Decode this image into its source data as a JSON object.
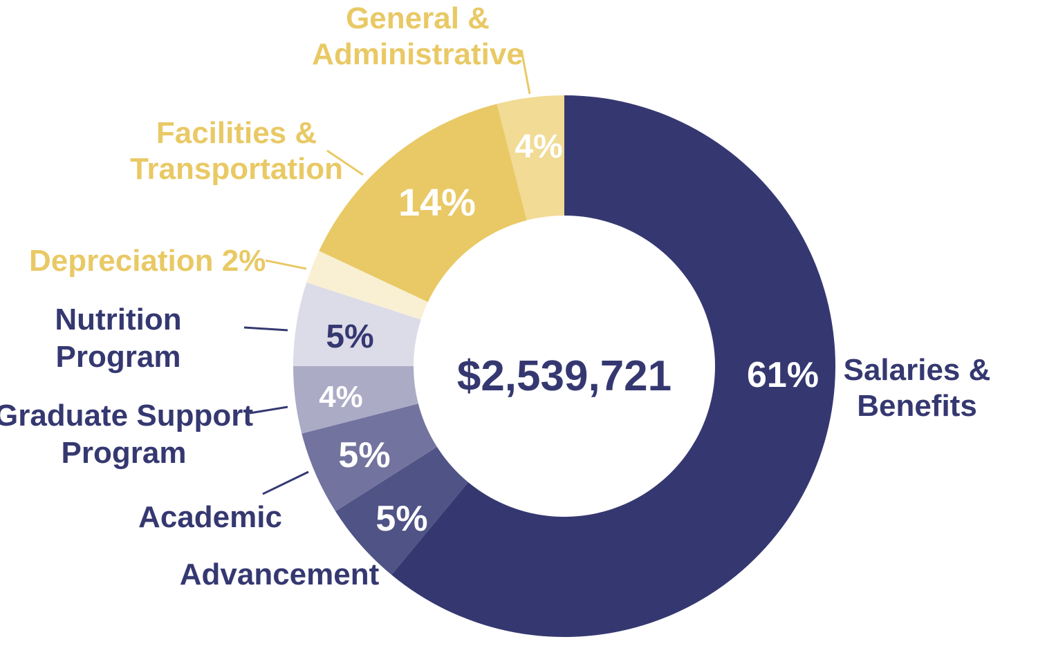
{
  "chart_data": {
    "type": "donut",
    "total_label": "$2,539,721",
    "colors": {
      "total_text": "#353870",
      "navy_label": "#353870",
      "gold_label": "#E9C965",
      "leader_navy": "#353870",
      "leader_gold": "#E9C965"
    },
    "slices": [
      {
        "name": "Salaries & Benefits",
        "label_lines": [
          "Salaries &",
          "Benefits"
        ],
        "value": 61,
        "pct_label": "61%",
        "color": "#353870",
        "pct_color": "#ffffff",
        "label_color_key": "navy_label"
      },
      {
        "name": "Advancement",
        "label_lines": [
          "Advancement"
        ],
        "value": 5,
        "pct_label": "5%",
        "color": "#4F5385",
        "pct_color": "#ffffff",
        "label_color_key": "navy_label"
      },
      {
        "name": "Academic",
        "label_lines": [
          "Academic"
        ],
        "value": 5,
        "pct_label": "5%",
        "color": "#73739F",
        "pct_color": "#ffffff",
        "label_color_key": "navy_label"
      },
      {
        "name": "Graduate Support Program",
        "label_lines": [
          "Graduate Support",
          "Program"
        ],
        "value": 4,
        "pct_label": "4%",
        "color": "#ACABC6",
        "pct_color": "#ffffff",
        "label_color_key": "navy_label"
      },
      {
        "name": "Nutrition Program",
        "label_lines": [
          "Nutrition",
          "Program"
        ],
        "value": 5,
        "pct_label": "5%",
        "color": "#DCDBE8",
        "pct_color": "#353870",
        "label_color_key": "navy_label"
      },
      {
        "name": "Depreciation",
        "label_lines": [
          "Depreciation  2%"
        ],
        "value": 2,
        "pct_label": "",
        "color": "#F9F0D3",
        "pct_color": "#E9C965",
        "label_color_key": "gold_label"
      },
      {
        "name": "Facilities & Transportation",
        "label_lines": [
          "Facilities &",
          "Transportation"
        ],
        "value": 14,
        "pct_label": "14%",
        "color": "#E9C965",
        "pct_color": "#ffffff",
        "label_color_key": "gold_label"
      },
      {
        "name": "General & Administrative",
        "label_lines": [
          "General &",
          "Administrative"
        ],
        "value": 4,
        "pct_label": "4%",
        "color": "#F1DB95",
        "pct_color": "#ffffff",
        "label_color_key": "gold_label"
      }
    ]
  }
}
